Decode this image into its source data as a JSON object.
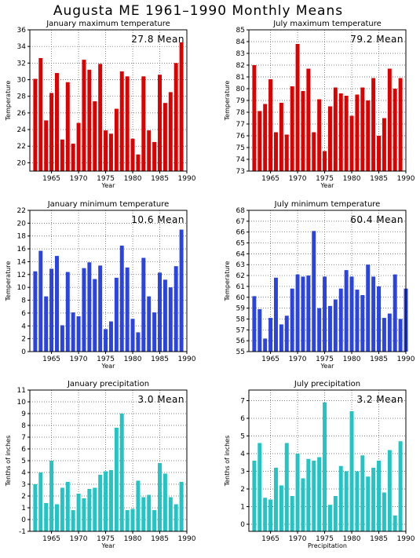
{
  "title": "Augusta ME  1961–1990 Monthly Means",
  "chart_data": [
    {
      "type": "bar",
      "title": "January maximum temperature",
      "annotation": "27.8 Mean",
      "xlabel": "Year",
      "ylabel": "Temperature",
      "color": "#dd0000",
      "ylim": [
        19,
        36
      ],
      "yticks": [
        20,
        22,
        24,
        26,
        28,
        30,
        32,
        34,
        36
      ],
      "xticks": [
        1965,
        1970,
        1975,
        1980,
        1985,
        1990
      ],
      "xlim": [
        1961,
        1990
      ],
      "grid": true,
      "x": [
        1962,
        1963,
        1964,
        1965,
        1966,
        1967,
        1968,
        1969,
        1970,
        1971,
        1972,
        1973,
        1974,
        1975,
        1976,
        1977,
        1978,
        1979,
        1980,
        1981,
        1982,
        1983,
        1984,
        1985,
        1986,
        1987,
        1988,
        1989,
        1990
      ],
      "values": [
        30.1,
        32.6,
        25.1,
        28.4,
        30.8,
        22.8,
        29.7,
        22.3,
        24.8,
        32.4,
        31.2,
        27.4,
        31.9,
        23.9,
        23.5,
        26.5,
        31.0,
        30.4,
        22.9,
        21.0,
        30.4,
        23.9,
        22.5,
        30.6,
        27.2,
        28.5,
        32.0,
        34.5,
        null
      ]
    },
    {
      "type": "bar",
      "title": "July maximum temperature",
      "annotation": "79.2 Mean",
      "xlabel": "Year",
      "ylabel": "Temperature",
      "color": "#dd0000",
      "ylim": [
        73,
        85
      ],
      "yticks": [
        73,
        74,
        75,
        76,
        77,
        78,
        79,
        80,
        81,
        82,
        83,
        84,
        85
      ],
      "xticks": [
        1965,
        1970,
        1975,
        1980,
        1985,
        1990
      ],
      "xlim": [
        1961,
        1990
      ],
      "grid": true,
      "x": [
        1962,
        1963,
        1964,
        1965,
        1966,
        1967,
        1968,
        1969,
        1970,
        1971,
        1972,
        1973,
        1974,
        1975,
        1976,
        1977,
        1978,
        1979,
        1980,
        1981,
        1982,
        1983,
        1984,
        1985,
        1986,
        1987,
        1988,
        1989,
        1990
      ],
      "values": [
        82.0,
        78.1,
        78.7,
        80.8,
        76.3,
        78.8,
        76.1,
        80.2,
        83.8,
        79.8,
        81.7,
        76.3,
        79.1,
        74.7,
        78.5,
        80.1,
        79.6,
        79.4,
        77.7,
        79.5,
        80.1,
        79.0,
        80.9,
        76.0,
        77.5,
        81.7,
        80.0,
        80.9,
        null
      ]
    },
    {
      "type": "bar",
      "title": "January minimum temperature",
      "annotation": "10.6 Mean",
      "xlabel": "Year",
      "ylabel": "Temperature",
      "color": "#2b44e0",
      "ylim": [
        0,
        22
      ],
      "yticks": [
        0,
        2,
        4,
        6,
        8,
        10,
        12,
        14,
        16,
        18,
        20,
        22
      ],
      "xticks": [
        1965,
        1970,
        1975,
        1980,
        1985,
        1990
      ],
      "xlim": [
        1961,
        1990
      ],
      "grid": true,
      "x": [
        1962,
        1963,
        1964,
        1965,
        1966,
        1967,
        1968,
        1969,
        1970,
        1971,
        1972,
        1973,
        1974,
        1975,
        1976,
        1977,
        1978,
        1979,
        1980,
        1981,
        1982,
        1983,
        1984,
        1985,
        1986,
        1987,
        1988,
        1989,
        1990
      ],
      "values": [
        12.5,
        15.7,
        8.6,
        12.9,
        14.9,
        4.1,
        12.4,
        6.1,
        5.5,
        13.0,
        13.9,
        11.3,
        13.4,
        3.5,
        4.7,
        11.5,
        16.5,
        13.1,
        5.1,
        3.0,
        14.6,
        8.6,
        6.1,
        12.3,
        11.2,
        10.0,
        13.3,
        19.0,
        null
      ]
    },
    {
      "type": "bar",
      "title": "July minimum temperature",
      "annotation": "60.4 Mean",
      "xlabel": "Year",
      "ylabel": "Temperature",
      "color": "#2b44e0",
      "ylim": [
        55,
        68
      ],
      "yticks": [
        55,
        56,
        57,
        58,
        59,
        60,
        61,
        62,
        63,
        64,
        65,
        66,
        67,
        68
      ],
      "xticks": [
        1965,
        1970,
        1975,
        1980,
        1985,
        1990
      ],
      "xlim": [
        1961,
        1990
      ],
      "grid": true,
      "x": [
        1962,
        1963,
        1964,
        1965,
        1966,
        1967,
        1968,
        1969,
        1970,
        1971,
        1972,
        1973,
        1974,
        1975,
        1976,
        1977,
        1978,
        1979,
        1980,
        1981,
        1982,
        1983,
        1984,
        1985,
        1986,
        1987,
        1988,
        1989,
        1990
      ],
      "values": [
        60.1,
        58.9,
        56.2,
        58.1,
        61.8,
        57.5,
        58.3,
        60.8,
        62.1,
        61.9,
        62.0,
        66.1,
        59.0,
        61.9,
        59.2,
        59.8,
        60.8,
        62.5,
        61.9,
        60.7,
        60.2,
        63.0,
        61.9,
        61.0,
        58.1,
        58.5,
        62.1,
        58.0,
        60.8
      ]
    },
    {
      "type": "bar",
      "title": "January precipitation",
      "annotation": "3.0 Mean",
      "xlabel": "Year",
      "ylabel": "Tenths of inches",
      "color": "#22c4c4",
      "ylim": [
        -1,
        11
      ],
      "yticks": [
        -1,
        0,
        1,
        2,
        3,
        4,
        5,
        6,
        7,
        8,
        9,
        10,
        11
      ],
      "xticks": [
        1965,
        1970,
        1975,
        1980,
        1985,
        1990
      ],
      "xlim": [
        1961,
        1990
      ],
      "grid": true,
      "x": [
        1962,
        1963,
        1964,
        1965,
        1966,
        1967,
        1968,
        1969,
        1970,
        1971,
        1972,
        1973,
        1974,
        1975,
        1976,
        1977,
        1978,
        1979,
        1980,
        1981,
        1982,
        1983,
        1984,
        1985,
        1986,
        1987,
        1988,
        1989,
        1990
      ],
      "values": [
        3.0,
        4.0,
        1.4,
        5.0,
        1.3,
        2.7,
        3.2,
        0.8,
        2.2,
        1.8,
        2.6,
        2.7,
        3.8,
        4.1,
        4.2,
        7.8,
        9.0,
        0.8,
        0.9,
        3.3,
        1.9,
        2.1,
        0.8,
        4.8,
        3.9,
        1.9,
        1.3,
        3.2,
        null
      ]
    },
    {
      "type": "bar",
      "title": "July precipitation",
      "annotation": "3.2 Mean",
      "xlabel": "Precipitation",
      "ylabel": "Tenths of inches",
      "color": "#22c4c4",
      "ylim": [
        -0.4,
        7.6
      ],
      "yticks": [
        0,
        1,
        2,
        3,
        4,
        5,
        6,
        7
      ],
      "xticks": [
        1965,
        1970,
        1975,
        1980,
        1985,
        1990
      ],
      "xlim": [
        1961,
        1990
      ],
      "grid": true,
      "x": [
        1962,
        1963,
        1964,
        1965,
        1966,
        1967,
        1968,
        1969,
        1970,
        1971,
        1972,
        1973,
        1974,
        1975,
        1976,
        1977,
        1978,
        1979,
        1980,
        1981,
        1982,
        1983,
        1984,
        1985,
        1986,
        1987,
        1988,
        1989,
        1990
      ],
      "values": [
        3.6,
        4.6,
        1.5,
        1.4,
        3.2,
        2.2,
        4.6,
        1.6,
        4.0,
        2.6,
        3.7,
        3.6,
        3.8,
        6.9,
        1.1,
        1.6,
        3.3,
        3.0,
        6.4,
        3.0,
        3.9,
        2.7,
        3.2,
        3.6,
        1.8,
        4.2,
        0.5,
        4.7,
        null
      ]
    }
  ]
}
